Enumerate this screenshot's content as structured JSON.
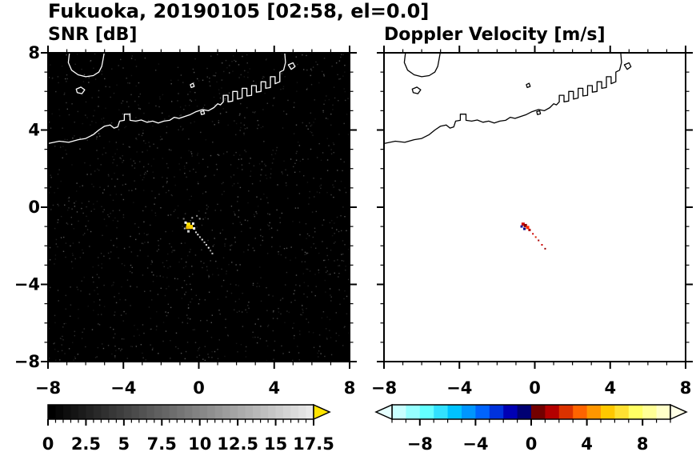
{
  "figure": {
    "title": "Fukuoka, 20190105 [02:58, el=0.0]"
  },
  "chart_data": [
    {
      "type": "heatmap",
      "title": "SNR [dB]",
      "xlabel": "",
      "ylabel": "",
      "xlim": [
        -8,
        8
      ],
      "ylim": [
        -8,
        8
      ],
      "xticks": [
        -8,
        -4,
        0,
        4,
        8
      ],
      "yticks": [
        -8,
        -4,
        0,
        4,
        8
      ],
      "minor_step": 1,
      "show_y_labels": true,
      "background": "#000000",
      "coast_color": "#ffffff",
      "noise": {
        "seed": 13,
        "count": 1400,
        "dot": 1.4,
        "colors": [
          "#161616",
          "#222222",
          "#2e2e2e",
          "#3c3c3c",
          "#555555"
        ]
      },
      "echo_points": [
        {
          "x": -0.55,
          "y": -0.9,
          "s": 5,
          "c": "#ffe400"
        },
        {
          "x": -0.42,
          "y": -1.02,
          "s": 5,
          "c": "#ffd200"
        },
        {
          "x": -0.6,
          "y": -1.05,
          "s": 4,
          "c": "#f0c000"
        },
        {
          "x": -0.7,
          "y": -0.8,
          "s": 3,
          "c": "#ffffff"
        },
        {
          "x": -0.3,
          "y": -0.85,
          "s": 3,
          "c": "#e8e8e8"
        },
        {
          "x": -0.25,
          "y": -1.1,
          "s": 3,
          "c": "#ffffff"
        },
        {
          "x": -0.55,
          "y": -1.25,
          "s": 3,
          "c": "#cccccc"
        },
        {
          "x": -0.75,
          "y": -1.1,
          "s": 2,
          "c": "#bbbbbb"
        },
        {
          "x": -0.15,
          "y": -1.3,
          "s": 2,
          "c": "#dddddd"
        },
        {
          "x": -0.05,
          "y": -1.42,
          "s": 2,
          "c": "#ffffff"
        },
        {
          "x": 0.06,
          "y": -1.55,
          "s": 2,
          "c": "#cccccc"
        },
        {
          "x": 0.18,
          "y": -1.68,
          "s": 2,
          "c": "#eeeeee"
        },
        {
          "x": 0.3,
          "y": -1.82,
          "s": 2,
          "c": "#bbbbbb"
        },
        {
          "x": 0.4,
          "y": -1.95,
          "s": 2,
          "c": "#dddddd"
        },
        {
          "x": 0.52,
          "y": -2.1,
          "s": 2,
          "c": "#ffffff"
        },
        {
          "x": 0.62,
          "y": -2.25,
          "s": 2,
          "c": "#999999"
        },
        {
          "x": 0.72,
          "y": -2.4,
          "s": 2,
          "c": "#cccccc"
        },
        {
          "x": -0.35,
          "y": -0.55,
          "s": 2,
          "c": "#aaaaaa"
        },
        {
          "x": -0.1,
          "y": -0.45,
          "s": 2,
          "c": "#888888"
        },
        {
          "x": 0.05,
          "y": -0.6,
          "s": 2,
          "c": "#999999"
        },
        {
          "x": -0.8,
          "y": -0.6,
          "s": 2,
          "c": "#777777"
        }
      ],
      "colorbar": {
        "kind": "grayscale",
        "range": [
          0,
          17.5
        ],
        "ticks": [
          0,
          2.5,
          5,
          7.5,
          10,
          12.5,
          15,
          17.5
        ],
        "minor_step": 0.5,
        "start_color": "#000000",
        "end_color": "#e8e8e8",
        "left_arrow": null,
        "right_arrow": "#ffe400"
      }
    },
    {
      "type": "heatmap",
      "title": "Doppler Velocity [m/s]",
      "xlabel": "",
      "ylabel": "",
      "xlim": [
        -8,
        8
      ],
      "ylim": [
        -8,
        8
      ],
      "xticks": [
        -8,
        -4,
        0,
        4,
        8
      ],
      "yticks": [
        -8,
        -4,
        0,
        4,
        8
      ],
      "minor_step": 1,
      "show_y_labels": false,
      "background": "#ffffff",
      "coast_color": "#000000",
      "noise": null,
      "echo_points": [
        {
          "x": -0.62,
          "y": -0.88,
          "s": 4,
          "c": "#d40000"
        },
        {
          "x": -0.5,
          "y": -0.95,
          "s": 4,
          "c": "#8b0000"
        },
        {
          "x": -0.38,
          "y": -1.05,
          "s": 4,
          "c": "#ff2a00"
        },
        {
          "x": -0.55,
          "y": -1.12,
          "s": 3,
          "c": "#000080"
        },
        {
          "x": -0.7,
          "y": -1.0,
          "s": 3,
          "c": "#1e1e96"
        },
        {
          "x": -0.28,
          "y": -1.18,
          "s": 3,
          "c": "#b00000"
        },
        {
          "x": -0.1,
          "y": -1.38,
          "s": 2,
          "c": "#cc0000"
        },
        {
          "x": 0.05,
          "y": -1.55,
          "s": 2,
          "c": "#dd2200"
        },
        {
          "x": 0.2,
          "y": -1.72,
          "s": 2,
          "c": "#aa0000"
        },
        {
          "x": 0.38,
          "y": -1.95,
          "s": 2,
          "c": "#cc0000"
        },
        {
          "x": 0.55,
          "y": -2.15,
          "s": 2,
          "c": "#990000"
        }
      ],
      "colorbar": {
        "kind": "segments",
        "range": [
          -10,
          10
        ],
        "ticks": [
          -8,
          -4,
          0,
          4,
          8
        ],
        "minor_step": 1,
        "segments": [
          "#c8ffff",
          "#96ffff",
          "#64ffff",
          "#32e1ff",
          "#00c3ff",
          "#0096ff",
          "#0064ff",
          "#0032dc",
          "#0000b4",
          "#000073",
          "#730000",
          "#b40000",
          "#dc3200",
          "#ff6400",
          "#ff9600",
          "#ffc800",
          "#ffe132",
          "#ffff64",
          "#ffff96",
          "#ffffc8"
        ],
        "left_arrow": "#e6ffff",
        "right_arrow": "#ffffe6"
      }
    }
  ],
  "coastline": {
    "main": [
      [
        -8.0,
        3.3
      ],
      [
        -7.4,
        3.42
      ],
      [
        -6.9,
        3.36
      ],
      [
        -6.4,
        3.5
      ],
      [
        -6.0,
        3.56
      ],
      [
        -5.6,
        3.76
      ],
      [
        -5.3,
        4.0
      ],
      [
        -5.0,
        4.2
      ],
      [
        -4.7,
        4.26
      ],
      [
        -4.5,
        4.1
      ],
      [
        -4.3,
        4.16
      ],
      [
        -4.2,
        4.46
      ],
      [
        -3.95,
        4.5
      ],
      [
        -3.95,
        4.82
      ],
      [
        -3.65,
        4.82
      ],
      [
        -3.65,
        4.5
      ],
      [
        -3.35,
        4.46
      ],
      [
        -3.05,
        4.52
      ],
      [
        -2.75,
        4.4
      ],
      [
        -2.45,
        4.46
      ],
      [
        -2.15,
        4.36
      ],
      [
        -1.85,
        4.46
      ],
      [
        -1.55,
        4.5
      ],
      [
        -1.3,
        4.66
      ],
      [
        -1.05,
        4.6
      ],
      [
        -0.75,
        4.7
      ],
      [
        -0.45,
        4.8
      ],
      [
        -0.15,
        4.95
      ],
      [
        0.2,
        5.06
      ],
      [
        0.5,
        5.0
      ],
      [
        0.8,
        5.16
      ],
      [
        1.0,
        5.36
      ],
      [
        1.15,
        5.3
      ],
      [
        1.3,
        5.46
      ],
      [
        1.3,
        5.8
      ],
      [
        1.55,
        5.8
      ],
      [
        1.55,
        5.46
      ],
      [
        1.8,
        5.5
      ],
      [
        1.8,
        6.0
      ],
      [
        2.05,
        6.0
      ],
      [
        2.05,
        5.6
      ],
      [
        2.3,
        5.66
      ],
      [
        2.3,
        6.16
      ],
      [
        2.55,
        6.16
      ],
      [
        2.55,
        5.76
      ],
      [
        2.8,
        5.8
      ],
      [
        2.8,
        6.3
      ],
      [
        3.05,
        6.3
      ],
      [
        3.05,
        5.96
      ],
      [
        3.3,
        6.0
      ],
      [
        3.3,
        6.5
      ],
      [
        3.55,
        6.5
      ],
      [
        3.55,
        6.16
      ],
      [
        3.8,
        6.2
      ],
      [
        3.8,
        6.76
      ],
      [
        4.05,
        6.76
      ],
      [
        4.05,
        6.4
      ],
      [
        4.3,
        6.5
      ],
      [
        4.3,
        7.0
      ],
      [
        4.5,
        7.1
      ],
      [
        4.6,
        7.5
      ],
      [
        4.55,
        8.1
      ]
    ],
    "peninsula": [
      [
        -6.85,
        8.1
      ],
      [
        -6.92,
        7.5
      ],
      [
        -6.75,
        7.1
      ],
      [
        -6.4,
        6.86
      ],
      [
        -6.0,
        6.76
      ],
      [
        -5.6,
        6.82
      ],
      [
        -5.3,
        7.0
      ],
      [
        -5.15,
        7.3
      ],
      [
        -5.08,
        7.65
      ],
      [
        -5.0,
        8.1
      ]
    ],
    "islands": [
      [
        [
          -6.5,
          6.12
        ],
        [
          -6.25,
          6.22
        ],
        [
          -6.05,
          6.08
        ],
        [
          -6.2,
          5.88
        ],
        [
          -6.45,
          5.94
        ]
      ],
      [
        [
          -0.45,
          6.35
        ],
        [
          -0.3,
          6.42
        ],
        [
          -0.24,
          6.26
        ],
        [
          -0.4,
          6.2
        ]
      ],
      [
        [
          0.1,
          4.95
        ],
        [
          0.26,
          5.0
        ],
        [
          0.3,
          4.84
        ],
        [
          0.14,
          4.8
        ]
      ],
      [
        [
          4.75,
          7.38
        ],
        [
          5.0,
          7.48
        ],
        [
          5.1,
          7.28
        ],
        [
          4.9,
          7.14
        ]
      ]
    ]
  }
}
